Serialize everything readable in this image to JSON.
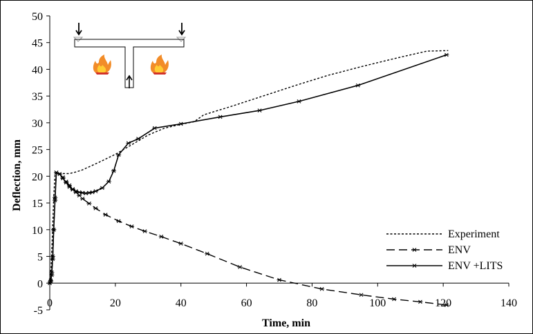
{
  "chart_data": {
    "type": "line",
    "xlabel": "Time, min",
    "ylabel": "Deflection, mm",
    "xlim": [
      0,
      140
    ],
    "ylim": [
      -5,
      50
    ],
    "x_ticks": [
      0,
      20,
      40,
      60,
      80,
      100,
      120,
      140
    ],
    "y_ticks": [
      -5,
      0,
      5,
      10,
      15,
      20,
      25,
      30,
      35,
      40,
      45,
      50
    ],
    "x_tick_labels": [
      "0",
      "20",
      "40",
      "60",
      "80",
      "100",
      "120",
      "140"
    ],
    "y_tick_labels": [
      "-5",
      "0",
      "5",
      "10",
      "15",
      "20",
      "25",
      "30",
      "35",
      "40",
      "45",
      "50"
    ],
    "grid": false,
    "legend_position": "bottom-right",
    "series": [
      {
        "name": "Experiment",
        "style": "dotted",
        "marker": "none",
        "x": [
          0,
          0.4,
          0.8,
          1.2,
          1.6,
          2,
          4,
          6,
          8,
          10,
          15,
          20,
          25,
          30,
          35,
          40,
          44,
          47,
          55,
          65,
          75,
          85,
          95,
          105,
          115,
          121.5
        ],
        "y": [
          0,
          3,
          9,
          16,
          20.5,
          20.6,
          20.5,
          20.5,
          20.8,
          21.2,
          22.6,
          24.1,
          25.9,
          27.7,
          29.0,
          29.7,
          30.2,
          31.5,
          33.0,
          35.0,
          37.0,
          38.9,
          40.5,
          42.0,
          43.4,
          43.5
        ]
      },
      {
        "name": "ENV",
        "style": "dashed",
        "marker": "asterisk",
        "x": [
          0,
          0.3,
          0.6,
          0.9,
          1.2,
          1.6,
          2,
          3,
          4,
          5,
          6,
          7,
          8,
          9,
          10,
          12,
          14,
          17,
          21,
          25,
          29,
          34,
          40,
          48,
          58,
          70,
          83,
          95,
          105,
          113,
          121
        ],
        "y": [
          0,
          0.3,
          1.5,
          4.5,
          10,
          16,
          20.7,
          20.4,
          19.8,
          19.0,
          18.3,
          17.6,
          17.0,
          16.4,
          15.8,
          14.9,
          14.0,
          12.8,
          11.6,
          10.6,
          9.7,
          8.7,
          7.4,
          5.5,
          3.0,
          0.6,
          -1.1,
          -2.2,
          -3.0,
          -3.5,
          -4.1
        ]
      },
      {
        "name": "ENV +LITS",
        "style": "solid",
        "marker": "asterisk",
        "x": [
          0,
          0.3,
          0.6,
          0.9,
          1.2,
          1.6,
          2,
          3,
          4,
          5,
          6,
          7,
          8,
          9,
          10,
          11,
          12,
          13,
          14,
          16,
          18,
          19.5,
          21,
          24,
          27,
          32,
          40,
          52,
          64,
          76,
          94,
          121
        ],
        "y": [
          0,
          0.5,
          2,
          5,
          10,
          15.5,
          20.7,
          20.4,
          19.6,
          18.8,
          18.0,
          17.5,
          17.2,
          17.0,
          16.9,
          16.8,
          16.9,
          17.0,
          17.2,
          17.8,
          19.0,
          21.0,
          24.0,
          26.2,
          27.0,
          29.0,
          29.8,
          31.1,
          32.3,
          34.0,
          37.0,
          42.7
        ]
      }
    ]
  }
}
